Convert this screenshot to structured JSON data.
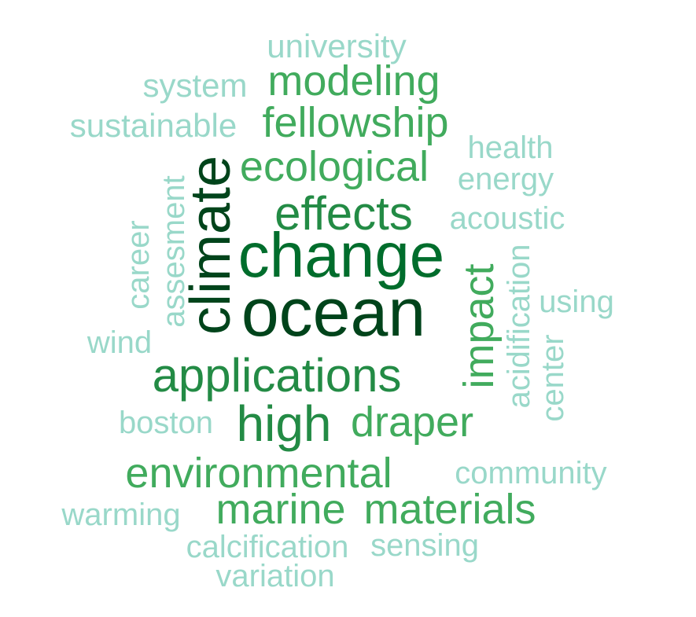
{
  "word_cloud": {
    "palette": {
      "darkest": "#00441b",
      "dark": "#006d2c",
      "medium_dark": "#238b45",
      "medium": "#41ab5d",
      "light": "#99d8c9"
    },
    "words": [
      {
        "id": "university",
        "text": "university",
        "color": "#99d8c9"
      },
      {
        "id": "system",
        "text": "system",
        "color": "#99d8c9"
      },
      {
        "id": "modeling",
        "text": "modeling",
        "color": "#41ab5d"
      },
      {
        "id": "sustainable",
        "text": "sustainable",
        "color": "#99d8c9"
      },
      {
        "id": "fellowship",
        "text": "fellowship",
        "color": "#41ab5d"
      },
      {
        "id": "health",
        "text": "health",
        "color": "#99d8c9"
      },
      {
        "id": "ecological",
        "text": "ecological",
        "color": "#41ab5d"
      },
      {
        "id": "energy",
        "text": "energy",
        "color": "#99d8c9"
      },
      {
        "id": "climate",
        "text": "climate",
        "color": "#00441b"
      },
      {
        "id": "effects",
        "text": "effects",
        "color": "#238b45"
      },
      {
        "id": "acoustic",
        "text": "acoustic",
        "color": "#99d8c9"
      },
      {
        "id": "assessment",
        "text": "assesment",
        "color": "#99d8c9"
      },
      {
        "id": "career",
        "text": "career",
        "color": "#99d8c9"
      },
      {
        "id": "change",
        "text": "change",
        "color": "#006d2c"
      },
      {
        "id": "impact",
        "text": "impact",
        "color": "#41ab5d"
      },
      {
        "id": "acidification",
        "text": "acidification",
        "color": "#99d8c9"
      },
      {
        "id": "using",
        "text": "using",
        "color": "#99d8c9"
      },
      {
        "id": "ocean",
        "text": "ocean",
        "color": "#00441b"
      },
      {
        "id": "wind",
        "text": "wind",
        "color": "#99d8c9"
      },
      {
        "id": "center",
        "text": "center",
        "color": "#99d8c9"
      },
      {
        "id": "applications",
        "text": "applications",
        "color": "#238b45"
      },
      {
        "id": "boston",
        "text": "boston",
        "color": "#99d8c9"
      },
      {
        "id": "high",
        "text": "high",
        "color": "#238b45"
      },
      {
        "id": "draper",
        "text": "draper",
        "color": "#41ab5d"
      },
      {
        "id": "environmental",
        "text": "environmental",
        "color": "#41ab5d"
      },
      {
        "id": "community",
        "text": "community",
        "color": "#99d8c9"
      },
      {
        "id": "warming",
        "text": "warming",
        "color": "#99d8c9"
      },
      {
        "id": "marine",
        "text": "marine",
        "color": "#41ab5d"
      },
      {
        "id": "materials",
        "text": "materials",
        "color": "#41ab5d"
      },
      {
        "id": "calcification",
        "text": "calcification",
        "color": "#99d8c9"
      },
      {
        "id": "sensing",
        "text": "sensing",
        "color": "#99d8c9"
      },
      {
        "id": "variation",
        "text": "variation",
        "color": "#99d8c9"
      }
    ]
  }
}
